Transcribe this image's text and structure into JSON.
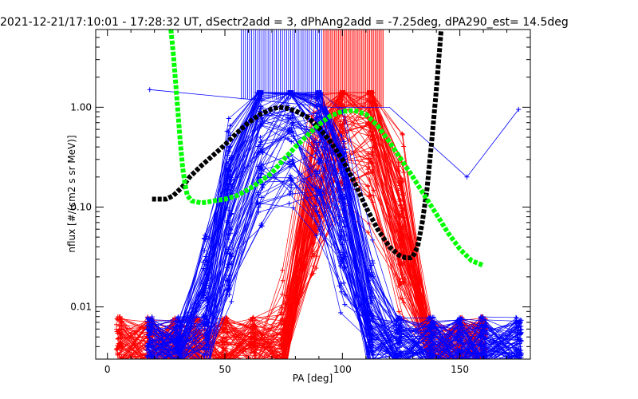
{
  "chart_data": {
    "type": "line",
    "title": "2021-12-21/17:10:01 - 17:28:32 UT, dSectr2add = 3, dPhAng2add = -7.25deg, dPA290_est=  14.5deg",
    "xlabel": "PA [deg]",
    "ylabel": "nflux [#/(cm2 s sr MeV)]",
    "xlim": [
      -5,
      180
    ],
    "ylim": [
      0.003,
      6.0
    ],
    "yscale": "log",
    "xticks": [
      0,
      50,
      100,
      150
    ],
    "xtick_labels": [
      "0",
      "50",
      "100",
      "150"
    ],
    "yticks": [
      0.01,
      0.1,
      1.0
    ],
    "ytick_labels": [
      "0.01",
      "0.10",
      "1.00"
    ],
    "colors": {
      "red_bundle": "#ff0000",
      "blue_bundle": "#0000ff",
      "fit_black": "#000000",
      "fit_green": "#00ff00"
    },
    "series": [
      {
        "color": "#000000",
        "style": "thick-dashed",
        "x": [
          19,
          22,
          25,
          28,
          32,
          35,
          40,
          45,
          50,
          55,
          60,
          65,
          70,
          73,
          76,
          80,
          85,
          90,
          95,
          100,
          105,
          110,
          115,
          120,
          124,
          127,
          129,
          130,
          132,
          134,
          136,
          138,
          140,
          142
        ],
        "y": [
          0.12,
          0.12,
          0.12,
          0.13,
          0.16,
          0.2,
          0.26,
          0.33,
          0.42,
          0.55,
          0.7,
          0.85,
          0.96,
          1.0,
          0.98,
          0.92,
          0.8,
          0.62,
          0.45,
          0.3,
          0.18,
          0.1,
          0.06,
          0.04,
          0.033,
          0.031,
          0.031,
          0.032,
          0.04,
          0.07,
          0.15,
          0.45,
          1.5,
          5.8
        ]
      },
      {
        "color": "#00ff00",
        "style": "thick-dashed",
        "x": [
          27,
          28,
          29,
          30,
          31,
          32,
          33,
          34,
          36,
          40,
          45,
          50,
          55,
          60,
          65,
          70,
          75,
          80,
          85,
          90,
          95,
          100,
          105,
          110,
          115,
          120,
          125,
          130,
          135,
          140,
          145,
          150,
          155,
          160
        ],
        "y": [
          6.0,
          3.5,
          1.8,
          0.9,
          0.45,
          0.25,
          0.17,
          0.13,
          0.115,
          0.11,
          0.115,
          0.12,
          0.13,
          0.15,
          0.18,
          0.22,
          0.3,
          0.4,
          0.52,
          0.67,
          0.82,
          0.91,
          0.93,
          0.85,
          0.65,
          0.45,
          0.3,
          0.2,
          0.13,
          0.085,
          0.055,
          0.038,
          0.029,
          0.026
        ]
      }
    ]
  }
}
